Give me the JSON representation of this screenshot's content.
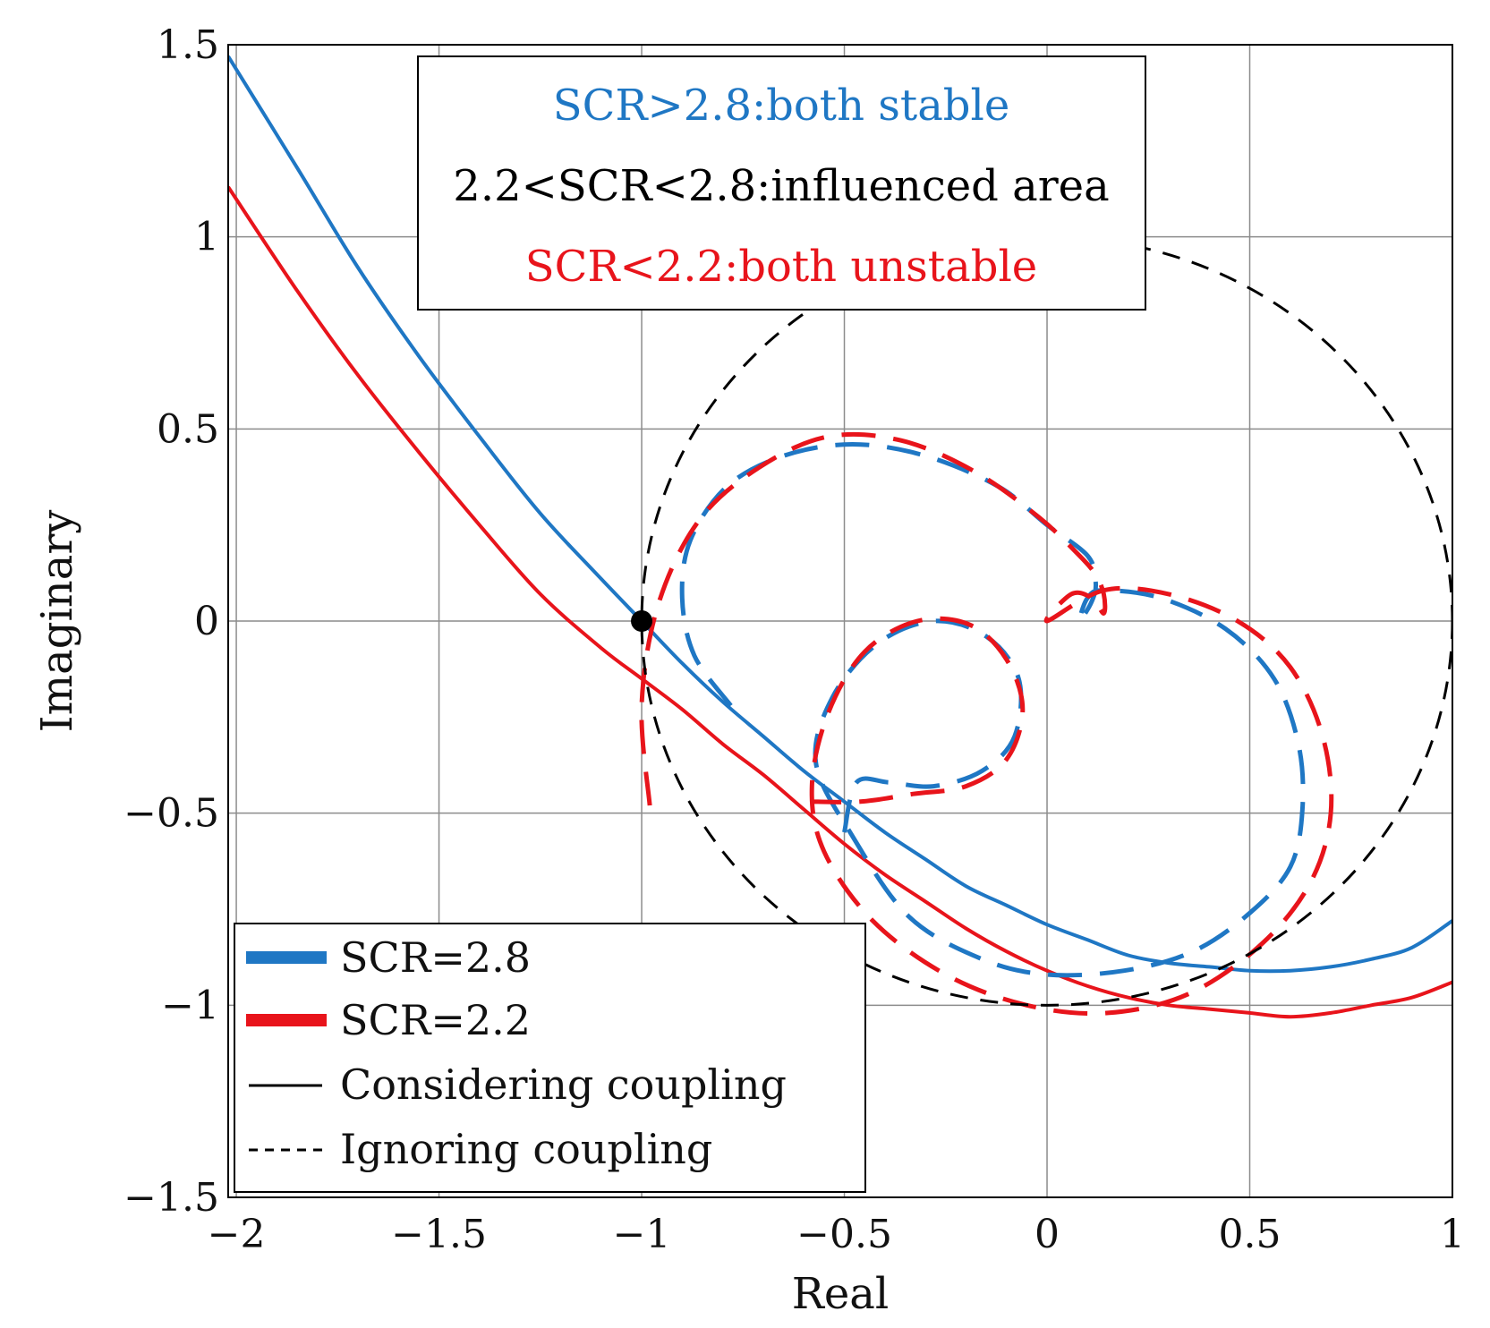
{
  "chart_data": {
    "type": "line",
    "title": "",
    "xlabel": "Real",
    "ylabel": "Imaginary",
    "xlim": [
      -2.02,
      1.0
    ],
    "ylim": [
      -1.5,
      1.5
    ],
    "xticks": [
      -2,
      -1.5,
      -1,
      -0.5,
      0,
      0.5,
      1
    ],
    "xtick_labels": [
      "−2",
      "−1.5",
      "−1",
      "−0.5",
      "0",
      "0.5",
      "1"
    ],
    "yticks": [
      -1.5,
      -1,
      -0.5,
      0,
      0.5,
      1,
      1.5
    ],
    "ytick_labels": [
      "−1.5",
      "−1",
      "−0.5",
      "0",
      "0.5",
      "1",
      "1.5"
    ],
    "grid": true,
    "colors": {
      "scr28": "#1f77c4",
      "scr22": "#e8141b",
      "reference": "#000000"
    },
    "annotations": [
      {
        "text": "SCR>2.8:both stable",
        "color": "#1f77c4"
      },
      {
        "text": "2.2<SCR<2.8:influenced area",
        "color": "#000000"
      },
      {
        "text": "SCR<2.2:both unstable",
        "color": "#e8141b"
      }
    ],
    "critical_point": {
      "x": -1,
      "y": 0
    },
    "legend": {
      "position": "bottom-left",
      "entries": [
        {
          "label": "SCR=2.8",
          "color": "#1f77c4",
          "style": "thick"
        },
        {
          "label": "SCR=2.2",
          "color": "#e8141b",
          "style": "thick"
        },
        {
          "label": "Considering coupling",
          "color": "#000000",
          "style": "solid"
        },
        {
          "label": "Ignoring coupling",
          "color": "#000000",
          "style": "dashed"
        }
      ]
    },
    "series": [
      {
        "name": "SCR=2.8 Considering coupling",
        "color": "#1f77c4",
        "style": "solid",
        "x": [
          -2.02,
          -1.85,
          -1.7,
          -1.55,
          -1.4,
          -1.25,
          -1.1,
          -1.0,
          -0.9,
          -0.8,
          -0.7,
          -0.6,
          -0.5,
          -0.4,
          -0.3,
          -0.2,
          -0.1,
          0.0,
          0.1,
          0.2,
          0.3,
          0.4,
          0.5,
          0.6,
          0.7,
          0.8,
          0.9,
          1.0
        ],
        "y": [
          1.47,
          1.18,
          0.92,
          0.69,
          0.48,
          0.28,
          0.11,
          0.0,
          -0.11,
          -0.21,
          -0.3,
          -0.39,
          -0.47,
          -0.55,
          -0.62,
          -0.69,
          -0.74,
          -0.79,
          -0.83,
          -0.87,
          -0.89,
          -0.9,
          -0.91,
          -0.91,
          -0.9,
          -0.88,
          -0.85,
          -0.78
        ]
      },
      {
        "name": "SCR=2.2 Considering coupling",
        "color": "#e8141b",
        "style": "solid",
        "x": [
          -2.02,
          -1.85,
          -1.7,
          -1.55,
          -1.4,
          -1.25,
          -1.1,
          -1.0,
          -0.9,
          -0.8,
          -0.7,
          -0.6,
          -0.5,
          -0.4,
          -0.3,
          -0.2,
          -0.1,
          0.0,
          0.1,
          0.2,
          0.3,
          0.4,
          0.5,
          0.6,
          0.7,
          0.8,
          0.9,
          1.0
        ],
        "y": [
          1.13,
          0.86,
          0.64,
          0.44,
          0.25,
          0.07,
          -0.07,
          -0.15,
          -0.23,
          -0.32,
          -0.4,
          -0.49,
          -0.58,
          -0.66,
          -0.73,
          -0.8,
          -0.86,
          -0.91,
          -0.95,
          -0.98,
          -1.0,
          -1.01,
          -1.02,
          -1.03,
          -1.02,
          -1.0,
          -0.98,
          -0.94
        ]
      },
      {
        "name": "SCR=2.8 Ignoring coupling",
        "color": "#1f77c4",
        "style": "dashed",
        "x": [
          -0.78,
          -0.87,
          -0.9,
          -0.88,
          -0.79,
          -0.65,
          -0.48,
          -0.3,
          -0.12,
          0.0,
          0.1,
          0.12,
          0.11,
          0.08,
          0.1,
          0.14,
          0.28,
          0.44,
          0.56,
          0.62,
          0.63,
          0.6,
          0.5,
          0.36,
          0.19,
          0.0,
          -0.16,
          -0.34,
          -0.48,
          -0.57,
          -0.53,
          -0.42,
          -0.28,
          -0.15,
          -0.07,
          -0.08,
          -0.16,
          -0.28,
          -0.39,
          -0.47,
          -0.5
        ],
        "y": [
          -0.22,
          -0.09,
          0.06,
          0.21,
          0.35,
          0.43,
          0.46,
          0.43,
          0.35,
          0.25,
          0.17,
          0.1,
          0.05,
          0.0,
          0.06,
          0.08,
          0.06,
          -0.02,
          -0.15,
          -0.32,
          -0.49,
          -0.64,
          -0.76,
          -0.86,
          -0.91,
          -0.92,
          -0.88,
          -0.77,
          -0.56,
          -0.37,
          -0.2,
          -0.06,
          0.0,
          -0.04,
          -0.15,
          -0.3,
          -0.39,
          -0.43,
          -0.42,
          -0.42,
          -0.55
        ]
      },
      {
        "name": "SCR=2.2 Ignoring coupling",
        "color": "#e8141b",
        "style": "dashed",
        "x": [
          -0.98,
          -1.0,
          -0.96,
          -0.86,
          -0.71,
          -0.54,
          -0.36,
          -0.18,
          -0.02,
          0.08,
          0.12,
          0.14,
          0.14,
          0.11,
          0.06,
          0.0,
          0.14,
          0.3,
          0.47,
          0.6,
          0.68,
          0.7,
          0.65,
          0.53,
          0.35,
          0.15,
          -0.05,
          -0.25,
          -0.43,
          -0.55,
          -0.58,
          -0.54,
          -0.45,
          -0.32,
          -0.19,
          -0.1,
          -0.06,
          -0.1,
          -0.2,
          -0.33,
          -0.46,
          -0.58
        ],
        "y": [
          -0.48,
          -0.22,
          0.04,
          0.26,
          0.4,
          0.48,
          0.47,
          0.39,
          0.27,
          0.17,
          0.12,
          0.07,
          0.02,
          0.06,
          0.07,
          0.0,
          0.08,
          0.07,
          0.0,
          -0.12,
          -0.3,
          -0.5,
          -0.68,
          -0.84,
          -0.97,
          -1.02,
          -1.0,
          -0.92,
          -0.78,
          -0.6,
          -0.43,
          -0.24,
          -0.08,
          0.0,
          -0.01,
          -0.1,
          -0.23,
          -0.36,
          -0.43,
          -0.45,
          -0.47,
          -0.47
        ]
      },
      {
        "name": "Unit circle reference (Ignoring coupling)",
        "color": "#000000",
        "style": "dashed-thin",
        "circle": {
          "cx": 0,
          "cy": 0,
          "r": 1
        }
      }
    ]
  }
}
